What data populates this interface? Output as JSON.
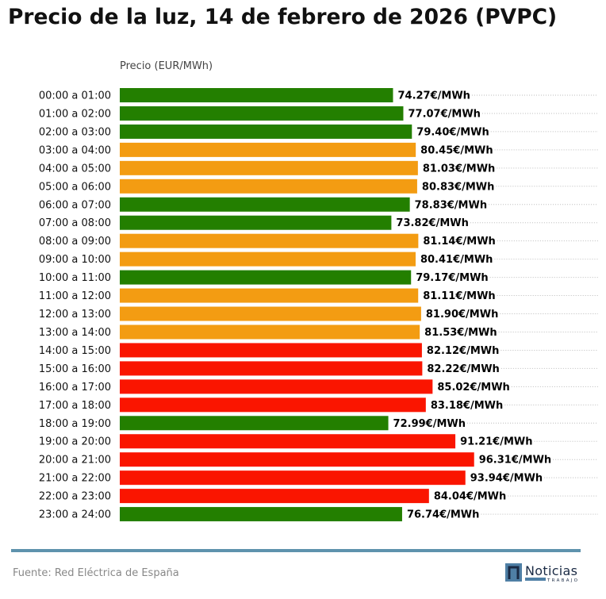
{
  "title": "Precio de la luz, 14 de febrero de 2026 (PVPC)",
  "footer": {
    "source": "Fuente: Red Eléctrica de España",
    "logo_text": "Noticias TRABAJO"
  },
  "colors": {
    "green": "#237f00",
    "orange": "#f39c12",
    "red": "#fa1500",
    "footer_line": "#5e93ad"
  },
  "chart_data": {
    "type": "bar",
    "orientation": "horizontal",
    "title": "Precio de la luz, 14 de febrero de 2026 (PVPC)",
    "xlabel": "Precio (EUR/MWh)",
    "ylabel": "",
    "xlim": [
      0,
      130
    ],
    "grid": "horizontal dotted",
    "value_suffix": "€/MWh",
    "categories": [
      "00:00 a 01:00",
      "01:00 a 02:00",
      "02:00 a 03:00",
      "03:00 a 04:00",
      "04:00 a 05:00",
      "05:00 a 06:00",
      "06:00 a 07:00",
      "07:00 a 08:00",
      "08:00 a 09:00",
      "09:00 a 10:00",
      "10:00 a 11:00",
      "11:00 a 12:00",
      "12:00 a 13:00",
      "13:00 a 14:00",
      "14:00 a 15:00",
      "15:00 a 16:00",
      "16:00 a 17:00",
      "17:00 a 18:00",
      "18:00 a 19:00",
      "19:00 a 20:00",
      "20:00 a 21:00",
      "21:00 a 22:00",
      "22:00 a 23:00",
      "23:00 a 24:00"
    ],
    "values": [
      74.27,
      77.07,
      79.4,
      80.45,
      81.03,
      80.83,
      78.83,
      73.82,
      81.14,
      80.41,
      79.17,
      81.11,
      81.9,
      81.53,
      82.12,
      82.22,
      85.02,
      83.18,
      72.99,
      91.21,
      96.31,
      93.94,
      84.04,
      76.74
    ],
    "value_labels": [
      "74.27€/MWh",
      "77.07€/MWh",
      "79.40€/MWh",
      "80.45€/MWh",
      "81.03€/MWh",
      "80.83€/MWh",
      "78.83€/MWh",
      "73.82€/MWh",
      "81.14€/MWh",
      "80.41€/MWh",
      "79.17€/MWh",
      "81.11€/MWh",
      "81.90€/MWh",
      "81.53€/MWh",
      "82.12€/MWh",
      "82.22€/MWh",
      "85.02€/MWh",
      "83.18€/MWh",
      "72.99€/MWh",
      "91.21€/MWh",
      "96.31€/MWh",
      "93.94€/MWh",
      "84.04€/MWh",
      "76.74€/MWh"
    ],
    "bar_colors": [
      "green",
      "green",
      "green",
      "orange",
      "orange",
      "orange",
      "green",
      "green",
      "orange",
      "orange",
      "green",
      "orange",
      "orange",
      "orange",
      "red",
      "red",
      "red",
      "red",
      "green",
      "red",
      "red",
      "red",
      "red",
      "green"
    ]
  }
}
